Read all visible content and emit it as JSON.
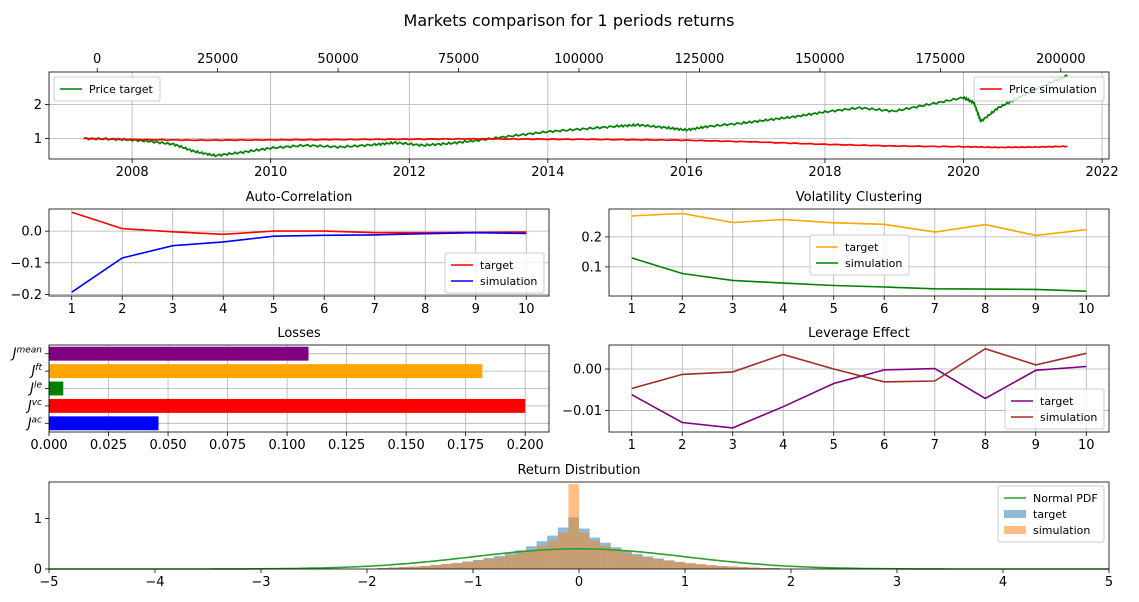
{
  "figure": {
    "title": "Markets comparison for 1 periods returns"
  },
  "chart_data": [
    {
      "id": "price",
      "type": "line",
      "title": "",
      "x": {
        "label": "",
        "range": [
          2006.8,
          2022.1
        ],
        "ticks": [
          2008,
          2010,
          2012,
          2014,
          2016,
          2018,
          2020,
          2022
        ],
        "tick_labels": [
          "2008",
          "2010",
          "2012",
          "2014",
          "2016",
          "2018",
          "2020",
          "2022"
        ]
      },
      "x_top": {
        "range": [
          -10000,
          210000
        ],
        "ticks": [
          0,
          25000,
          50000,
          75000,
          100000,
          125000,
          150000,
          175000,
          200000
        ],
        "tick_labels": [
          "0",
          "25000",
          "50000",
          "75000",
          "100000",
          "125000",
          "150000",
          "175000",
          "200000"
        ]
      },
      "y": {
        "range": [
          0.4,
          2.95
        ],
        "ticks": [
          1,
          2
        ],
        "tick_labels": [
          "1",
          "2"
        ]
      },
      "grid": true,
      "legends": [
        {
          "placement": "upper-left",
          "entries": [
            {
              "name": "Price target",
              "color": "#008000"
            }
          ]
        },
        {
          "placement": "upper-right",
          "entries": [
            {
              "name": "Price simulation",
              "color": "#ff0000"
            }
          ]
        }
      ],
      "series": [
        {
          "name": "Price target",
          "color": "#008000",
          "points": [
            [
              2007.3,
              1.0
            ],
            [
              2007.8,
              0.98
            ],
            [
              2008.2,
              0.93
            ],
            [
              2008.6,
              0.83
            ],
            [
              2008.9,
              0.62
            ],
            [
              2009.2,
              0.5
            ],
            [
              2009.6,
              0.6
            ],
            [
              2010.0,
              0.72
            ],
            [
              2010.5,
              0.8
            ],
            [
              2011.0,
              0.75
            ],
            [
              2011.5,
              0.82
            ],
            [
              2011.8,
              0.88
            ],
            [
              2012.2,
              0.8
            ],
            [
              2012.6,
              0.86
            ],
            [
              2013.0,
              0.95
            ],
            [
              2013.5,
              1.08
            ],
            [
              2014.0,
              1.2
            ],
            [
              2014.5,
              1.28
            ],
            [
              2015.0,
              1.36
            ],
            [
              2015.3,
              1.4
            ],
            [
              2015.7,
              1.32
            ],
            [
              2016.0,
              1.25
            ],
            [
              2016.3,
              1.35
            ],
            [
              2016.8,
              1.45
            ],
            [
              2017.2,
              1.55
            ],
            [
              2017.6,
              1.65
            ],
            [
              2018.0,
              1.78
            ],
            [
              2018.5,
              1.9
            ],
            [
              2019.0,
              1.8
            ],
            [
              2019.5,
              2.0
            ],
            [
              2020.0,
              2.2
            ],
            [
              2020.15,
              2.05
            ],
            [
              2020.25,
              1.5
            ],
            [
              2020.5,
              1.9
            ],
            [
              2020.8,
              2.2
            ],
            [
              2021.1,
              2.5
            ],
            [
              2021.5,
              2.85
            ]
          ]
        },
        {
          "name": "Price simulation",
          "color": "#ff0000",
          "points": [
            [
              2007.3,
              1.0
            ],
            [
              2008.0,
              0.97
            ],
            [
              2009.0,
              0.95
            ],
            [
              2010.0,
              0.96
            ],
            [
              2011.0,
              0.97
            ],
            [
              2012.0,
              0.98
            ],
            [
              2013.0,
              0.99
            ],
            [
              2014.0,
              0.98
            ],
            [
              2015.0,
              0.97
            ],
            [
              2016.0,
              0.95
            ],
            [
              2017.0,
              0.9
            ],
            [
              2018.0,
              0.83
            ],
            [
              2019.0,
              0.78
            ],
            [
              2020.0,
              0.76
            ],
            [
              2020.5,
              0.74
            ],
            [
              2021.0,
              0.75
            ],
            [
              2021.5,
              0.77
            ]
          ]
        }
      ]
    },
    {
      "id": "autocorr",
      "type": "line",
      "title": "Auto-Correlation",
      "x": {
        "range": [
          0.55,
          10.45
        ],
        "ticks": [
          1,
          2,
          3,
          4,
          5,
          6,
          7,
          8,
          9,
          10
        ],
        "tick_labels": [
          "1",
          "2",
          "3",
          "4",
          "5",
          "6",
          "7",
          "8",
          "9",
          "10"
        ]
      },
      "y": {
        "range": [
          -0.205,
          0.07
        ],
        "ticks": [
          0.0,
          -0.1,
          -0.2
        ],
        "tick_labels": [
          "0.0",
          "−0.1",
          "−0.2"
        ]
      },
      "grid": true,
      "legend": {
        "placement": "lower-right"
      },
      "series": [
        {
          "name": "target",
          "color": "#ff0000",
          "x": [
            1,
            2,
            3,
            4,
            5,
            6,
            7,
            8,
            9,
            10
          ],
          "values": [
            0.06,
            0.008,
            -0.002,
            -0.01,
            0.0,
            0.0,
            -0.005,
            -0.005,
            -0.004,
            -0.003
          ]
        },
        {
          "name": "simulation",
          "color": "#0000ff",
          "x": [
            1,
            2,
            3,
            4,
            5,
            6,
            7,
            8,
            9,
            10
          ],
          "values": [
            -0.193,
            -0.085,
            -0.046,
            -0.034,
            -0.016,
            -0.013,
            -0.012,
            -0.008,
            -0.005,
            -0.007
          ]
        }
      ]
    },
    {
      "id": "volclust",
      "type": "line",
      "title": "Volatility Clustering",
      "x": {
        "range": [
          0.55,
          10.45
        ],
        "ticks": [
          1,
          2,
          3,
          4,
          5,
          6,
          7,
          8,
          9,
          10
        ],
        "tick_labels": [
          "1",
          "2",
          "3",
          "4",
          "5",
          "6",
          "7",
          "8",
          "9",
          "10"
        ]
      },
      "y": {
        "range": [
          0.003,
          0.293
        ],
        "ticks": [
          0.1,
          0.2
        ],
        "tick_labels": [
          "0.1",
          "0.2"
        ]
      },
      "grid": true,
      "legend": {
        "placement": "center"
      },
      "series": [
        {
          "name": "target",
          "color": "#ffa500",
          "x": [
            1,
            2,
            3,
            4,
            5,
            6,
            7,
            8,
            9,
            10
          ],
          "values": [
            0.27,
            0.278,
            0.248,
            0.258,
            0.247,
            0.242,
            0.216,
            0.241,
            0.205,
            0.224
          ]
        },
        {
          "name": "simulation",
          "color": "#008000",
          "x": [
            1,
            2,
            3,
            4,
            5,
            6,
            7,
            8,
            9,
            10
          ],
          "values": [
            0.13,
            0.078,
            0.055,
            0.046,
            0.038,
            0.033,
            0.027,
            0.026,
            0.025,
            0.019
          ]
        }
      ]
    },
    {
      "id": "losses",
      "type": "bar",
      "orientation": "horizontal",
      "title": "Losses",
      "categories": [
        "J^ac",
        "J^vc",
        "J^le",
        "J^ft",
        "J^mean"
      ],
      "category_labels": [
        {
          "base": "J",
          "sup": "ac"
        },
        {
          "base": "J",
          "sup": "vc"
        },
        {
          "base": "J",
          "sup": "le"
        },
        {
          "base": "J",
          "sup": "ft"
        },
        {
          "base": "J",
          "sup": "mean"
        }
      ],
      "values": [
        0.046,
        0.2,
        0.006,
        0.182,
        0.109
      ],
      "colors": [
        "#0000ff",
        "#ff0000",
        "#008000",
        "#ffa500",
        "#800080"
      ],
      "x": {
        "range": [
          0,
          0.21
        ],
        "ticks": [
          0.0,
          0.025,
          0.05,
          0.075,
          0.1,
          0.125,
          0.15,
          0.175,
          0.2
        ],
        "tick_labels": [
          "0.000",
          "0.025",
          "0.050",
          "0.075",
          "0.100",
          "0.125",
          "0.150",
          "0.175",
          "0.200"
        ]
      },
      "grid": true
    },
    {
      "id": "leverage",
      "type": "line",
      "title": "Leverage Effect",
      "x": {
        "range": [
          0.55,
          10.45
        ],
        "ticks": [
          1,
          2,
          3,
          4,
          5,
          6,
          7,
          8,
          9,
          10
        ],
        "tick_labels": [
          "1",
          "2",
          "3",
          "4",
          "5",
          "6",
          "7",
          "8",
          "9",
          "10"
        ]
      },
      "y": {
        "range": [
          -0.0152,
          0.0058
        ],
        "ticks": [
          0.0,
          -0.01
        ],
        "tick_labels": [
          "0.00",
          "−0.01"
        ]
      },
      "grid": true,
      "legend": {
        "placement": "lower-right"
      },
      "series": [
        {
          "name": "target",
          "color": "#800080",
          "x": [
            1,
            2,
            3,
            4,
            5,
            6,
            7,
            8,
            9,
            10
          ],
          "values": [
            -0.0062,
            -0.0129,
            -0.0142,
            -0.0091,
            -0.0035,
            -0.0002,
            0.0001,
            -0.0071,
            -0.0003,
            0.0006
          ]
        },
        {
          "name": "simulation",
          "color": "#a52a2a",
          "x": [
            1,
            2,
            3,
            4,
            5,
            6,
            7,
            8,
            9,
            10
          ],
          "values": [
            -0.0047,
            -0.0013,
            -0.0007,
            0.0035,
            0.0,
            -0.0031,
            -0.0029,
            0.0049,
            0.001,
            0.0038
          ]
        }
      ]
    },
    {
      "id": "returns",
      "type": "histogram",
      "title": "Return Distribution",
      "x": {
        "range": [
          -5,
          5
        ],
        "ticks": [
          -5,
          -4,
          -3,
          -2,
          -1,
          0,
          1,
          2,
          3,
          4,
          5
        ],
        "tick_labels": [
          "−5",
          "−4",
          "−3",
          "−2",
          "−1",
          "0",
          "1",
          "2",
          "3",
          "4",
          "5"
        ]
      },
      "y": {
        "range": [
          0,
          1.72
        ],
        "ticks": [
          0,
          1
        ],
        "tick_labels": [
          "0",
          "1"
        ]
      },
      "grid": false,
      "legend": {
        "placement": "upper-right"
      },
      "bins": [
        -1.9,
        1.9
      ],
      "bin_width": 0.1,
      "normal_pdf": {
        "name": "Normal PDF",
        "color": "#2ca02c",
        "mean": 0,
        "std": 1
      },
      "series": [
        {
          "name": "target",
          "color": "#1f77b4",
          "opacity": 0.5,
          "values": [
            0.02,
            0.03,
            0.04,
            0.05,
            0.06,
            0.08,
            0.1,
            0.12,
            0.15,
            0.18,
            0.22,
            0.26,
            0.31,
            0.37,
            0.45,
            0.55,
            0.66,
            0.82,
            1.02,
            0.8,
            0.62,
            0.52,
            0.43,
            0.36,
            0.3,
            0.25,
            0.21,
            0.17,
            0.14,
            0.11,
            0.09,
            0.07,
            0.06,
            0.05,
            0.04,
            0.03,
            0.02,
            0.02
          ]
        },
        {
          "name": "simulation",
          "color": "#ff7f0e",
          "opacity": 0.5,
          "values": [
            0.02,
            0.03,
            0.04,
            0.05,
            0.06,
            0.08,
            0.1,
            0.12,
            0.14,
            0.17,
            0.2,
            0.23,
            0.27,
            0.32,
            0.38,
            0.46,
            0.56,
            0.72,
            1.68,
            0.72,
            0.56,
            0.46,
            0.38,
            0.32,
            0.27,
            0.23,
            0.2,
            0.17,
            0.14,
            0.12,
            0.1,
            0.08,
            0.06,
            0.05,
            0.04,
            0.03,
            0.02,
            0.02
          ]
        }
      ]
    }
  ]
}
